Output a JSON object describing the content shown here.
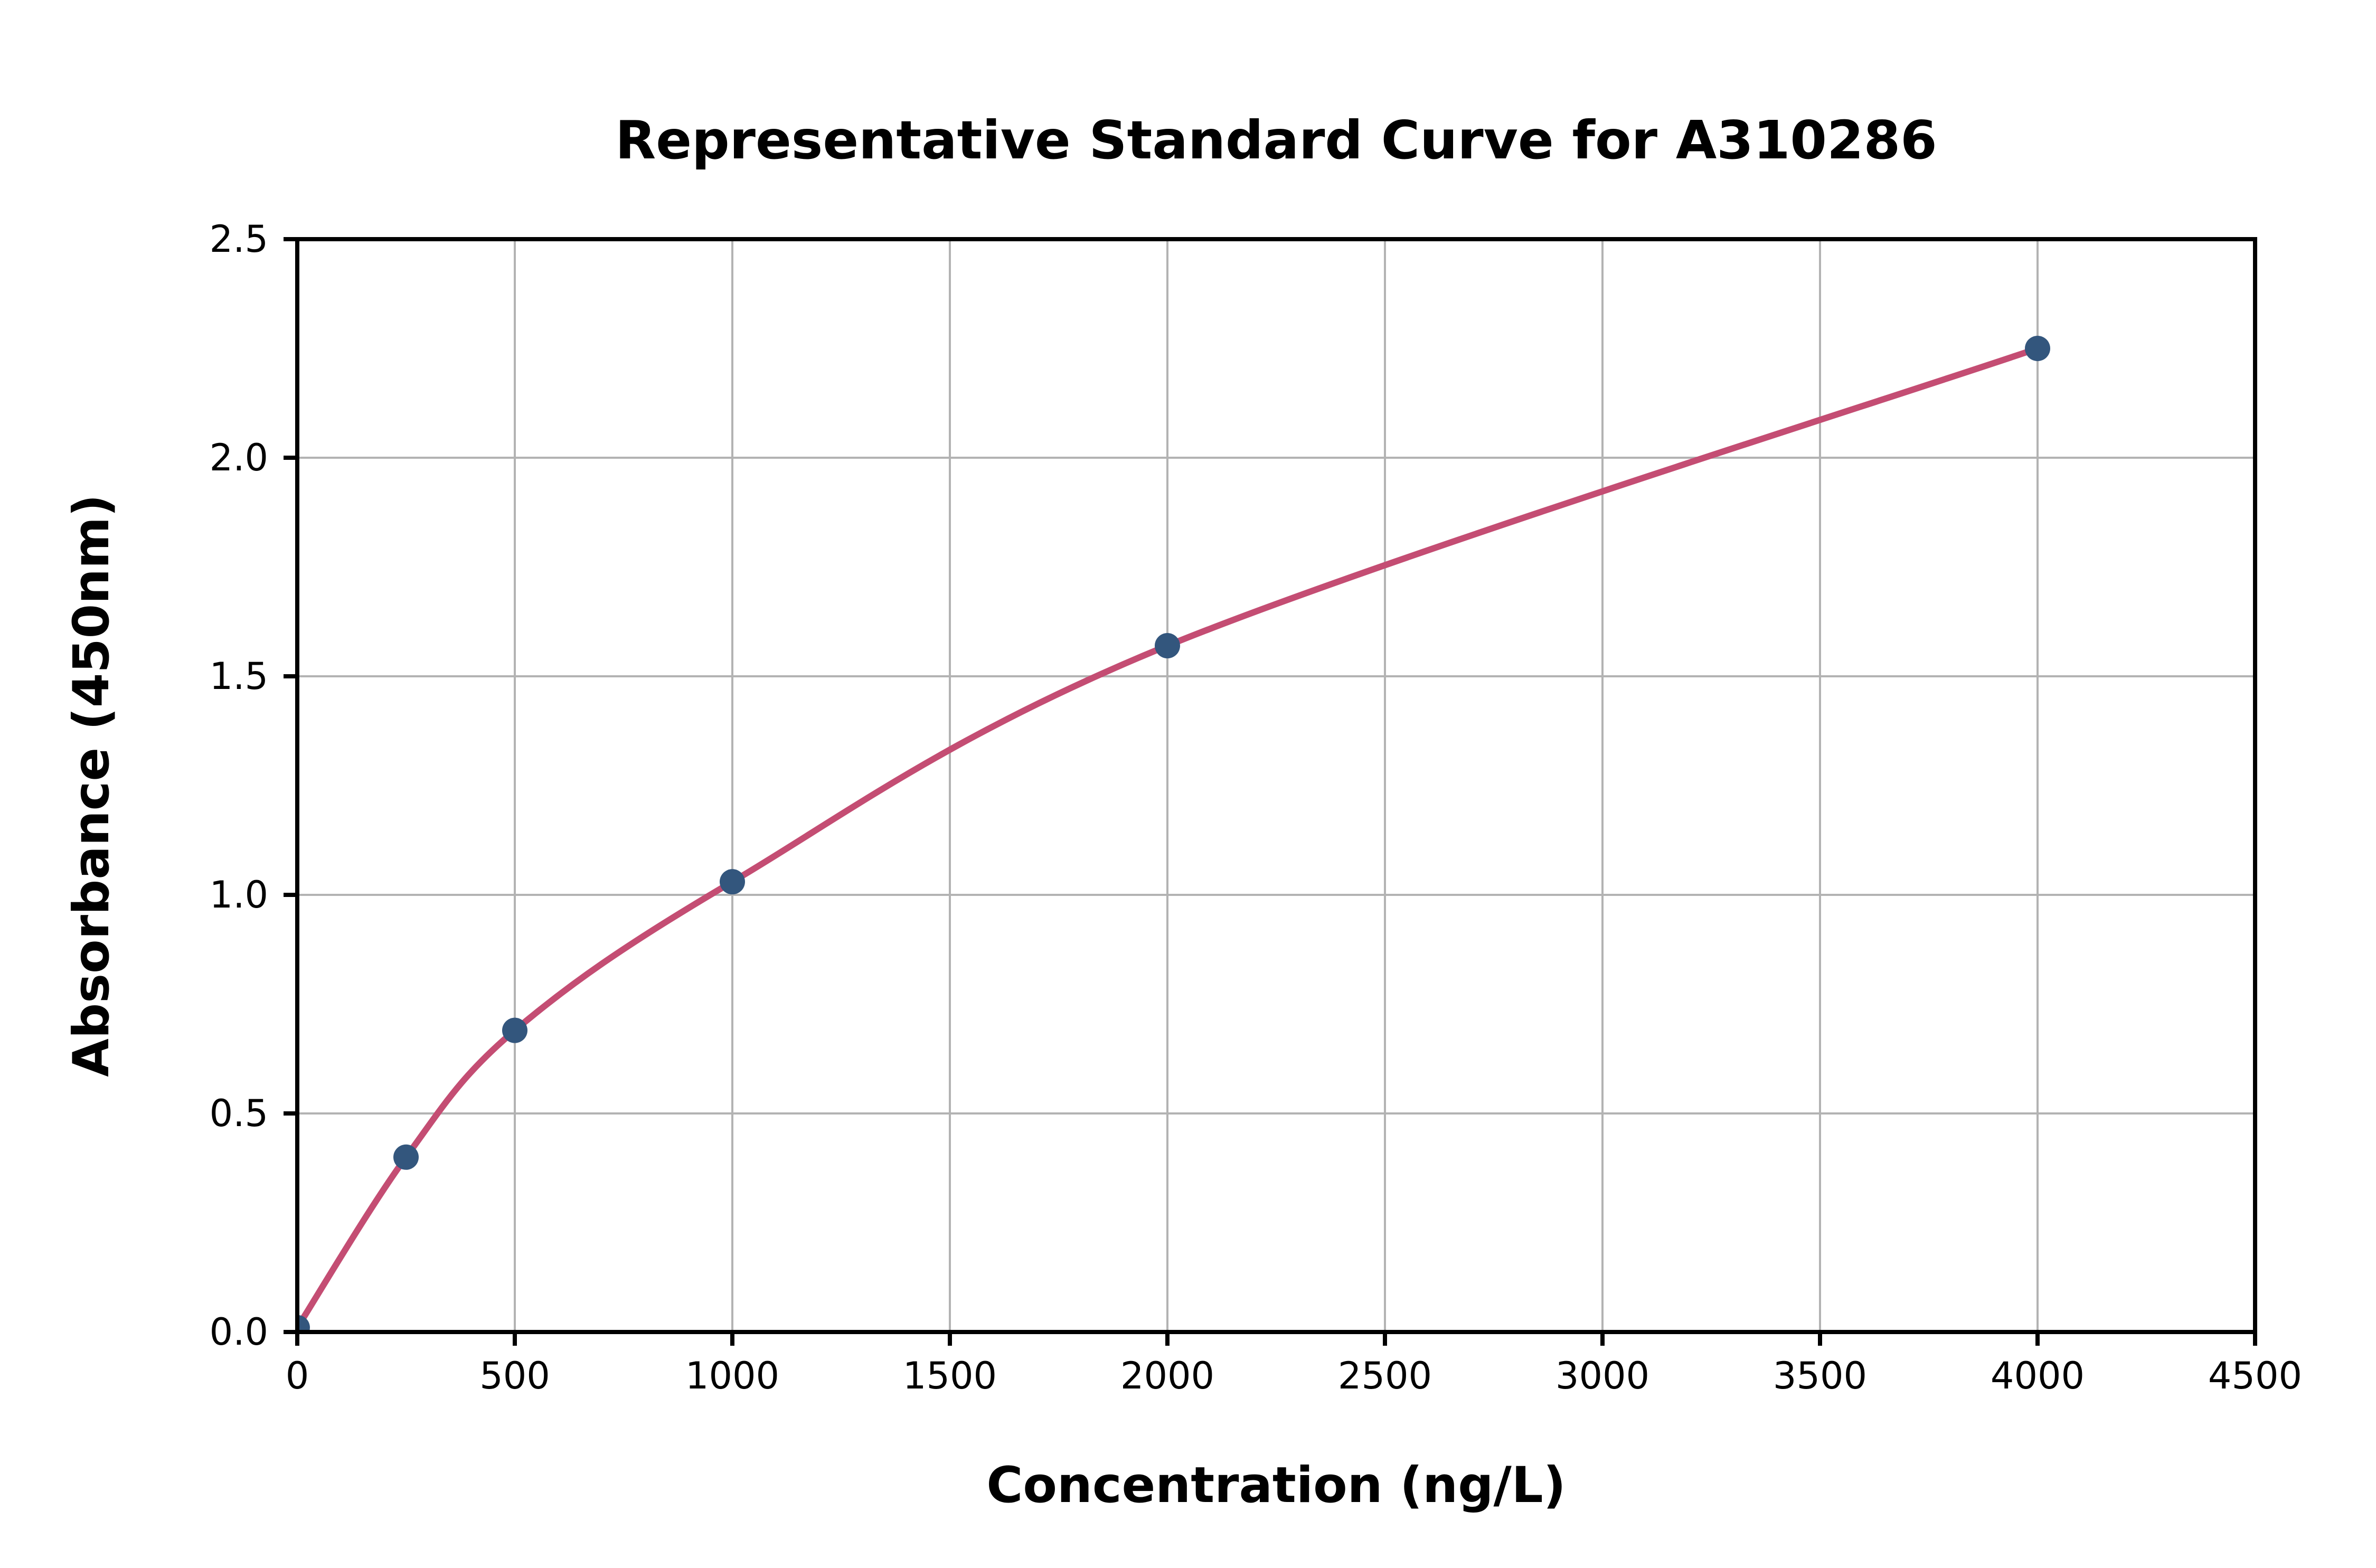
{
  "figure": {
    "background": "#ffffff"
  },
  "chart_data": {
    "type": "line",
    "title": "Representative Standard Curve for A310286",
    "xlabel": "Concentration (ng/L)",
    "ylabel": "Absorbance (450nm)",
    "x": [
      0,
      250,
      500,
      1000,
      2000,
      4000
    ],
    "y": [
      0.01,
      0.4,
      0.69,
      1.03,
      1.57,
      2.25
    ],
    "xlim": [
      0,
      4500
    ],
    "ylim": [
      0,
      2.5
    ],
    "x_ticks": [
      0,
      500,
      1000,
      1500,
      2000,
      2500,
      3000,
      3500,
      4000,
      4500
    ],
    "x_tick_labels": [
      "0",
      "500",
      "1000",
      "1500",
      "2000",
      "2500",
      "3000",
      "3500",
      "4000",
      "4500"
    ],
    "y_ticks": [
      0,
      0.5,
      1.0,
      1.5,
      2.0,
      2.5
    ],
    "y_tick_labels": [
      "0.0",
      "0.5",
      "1.0",
      "1.5",
      "2.0",
      "2.5"
    ],
    "grid": true,
    "legend": null,
    "line_color": "#c44d73",
    "marker_color": "#33567d",
    "grid_color": "#b3b3b3",
    "axis_color": "#000000",
    "text_color": "#000000"
  }
}
